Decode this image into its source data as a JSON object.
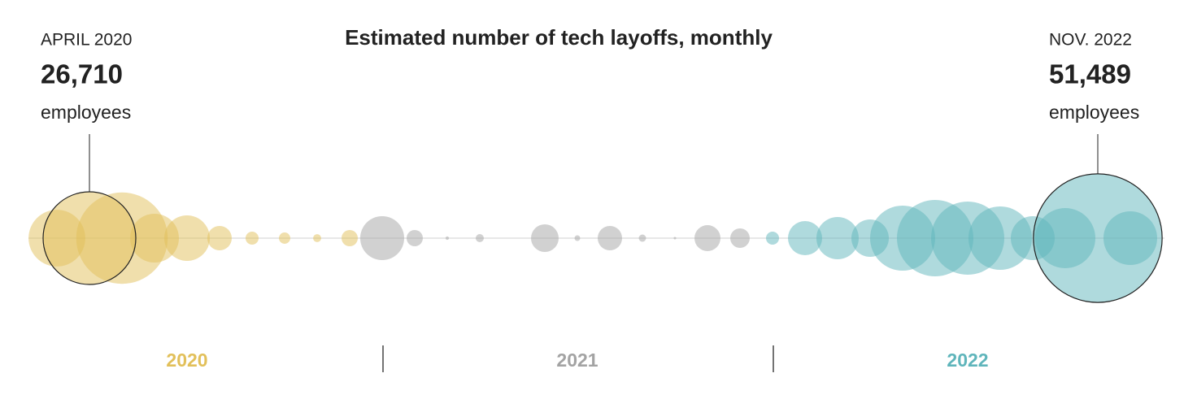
{
  "chart_data": {
    "type": "bubble-timeline",
    "title": "Estimated number of tech layoffs, monthly",
    "unit": "employees",
    "series": [
      {
        "name": "2020",
        "color": "#e2c05a",
        "values": [
          null,
          null,
          10000,
          26710,
          26000,
          7400,
          6450,
          1850,
          530,
          400,
          200,
          820
        ],
        "value_labels": [
          null,
          null,
          null,
          "26,710",
          null,
          null,
          null,
          null,
          null,
          null,
          null,
          null
        ],
        "point_labels": [
          null,
          null,
          null,
          "APRIL 2020",
          null,
          null,
          null,
          null,
          null,
          null,
          null,
          null
        ]
      },
      {
        "name": "2021",
        "color": "#a3a3a3",
        "values": [
          6000,
          820,
          35,
          205,
          0,
          2375,
          100,
          1850,
          165,
          20,
          2100,
          1180
        ],
        "value_labels": [
          null,
          null,
          null,
          null,
          null,
          null,
          null,
          null,
          null,
          null,
          null,
          null
        ],
        "point_labels": [
          null,
          null,
          null,
          null,
          null,
          null,
          null,
          null,
          null,
          null,
          null,
          null
        ]
      },
      {
        "name": "2022",
        "color": "#5fb5bb",
        "values": [
          530,
          3625,
          5560,
          4350,
          13150,
          18160,
          16650,
          12500,
          6000,
          11250,
          51489,
          8950
        ],
        "value_labels": [
          null,
          null,
          null,
          null,
          null,
          null,
          null,
          null,
          null,
          null,
          "51,489",
          null
        ],
        "point_labels": [
          null,
          null,
          null,
          null,
          null,
          null,
          null,
          null,
          null,
          null,
          "NOV. 2022",
          null
        ]
      }
    ]
  }
}
